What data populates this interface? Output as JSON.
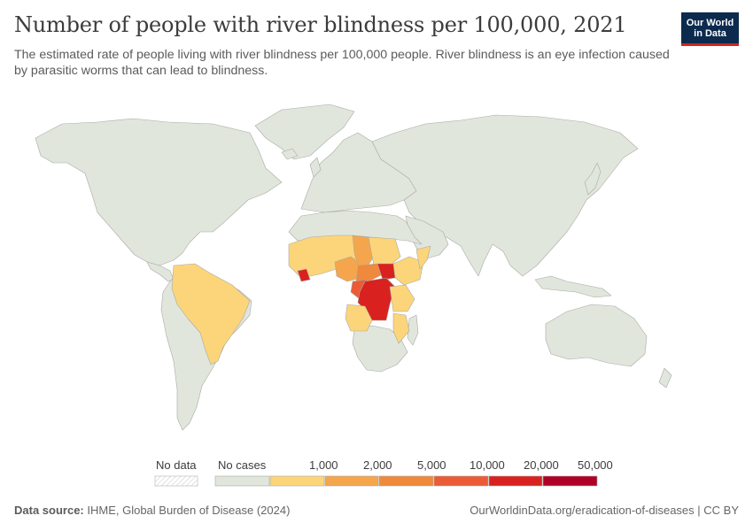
{
  "header": {
    "title": "Number of people with river blindness per 100,000, 2021",
    "subtitle": "The estimated rate of people living with river blindness per 100,000 people. River blindness is an eye infection caused by parasitic worms that can lead to blindness."
  },
  "logo": {
    "line1": "Our World",
    "line2": "in Data"
  },
  "legend": {
    "no_data_label": "No data",
    "no_cases_label": "No cases",
    "thresholds": [
      "1,000",
      "2,000",
      "5,000",
      "10,000",
      "20,000",
      "50,000"
    ],
    "colors": {
      "no_data": "#ffffff",
      "no_cases": "#e1e6dd",
      "bins": [
        "#fcd57a",
        "#f5a64c",
        "#ef8a3c",
        "#eb5b36",
        "#d9221f",
        "#b10028"
      ]
    }
  },
  "footer": {
    "source_label": "Data source:",
    "source_text": "IHME, Global Burden of Disease (2024)",
    "right_text": "OurWorldinData.org/eradication-of-diseases | CC BY"
  },
  "map_data": {
    "metric": "Number of people with river blindness per 100,000",
    "year": 2021,
    "bins_by_region": {
      "0-1,000": [
        "Brazil",
        "Venezuela",
        "Angola",
        "Malawi",
        "Mozambique",
        "Tanzania",
        "Kenya",
        "Somalia",
        "Senegal",
        "Mali",
        "Niger",
        "Burkina Faso",
        "Ghana",
        "Togo",
        "Benin",
        "Guinea"
      ],
      "1,000-2,000": [
        "Nigeria",
        "Chad",
        "Sudan",
        "Ethiopia",
        "Cote d'Ivoire"
      ],
      "2,000-5,000": [
        "Cameroon",
        "Central African Republic"
      ],
      "5,000-10,000": [
        "Congo",
        "Uganda",
        "Sierra Leone"
      ],
      "10,000-20,000": [
        "Democratic Republic of Congo",
        "South Sudan",
        "Liberia"
      ]
    }
  }
}
